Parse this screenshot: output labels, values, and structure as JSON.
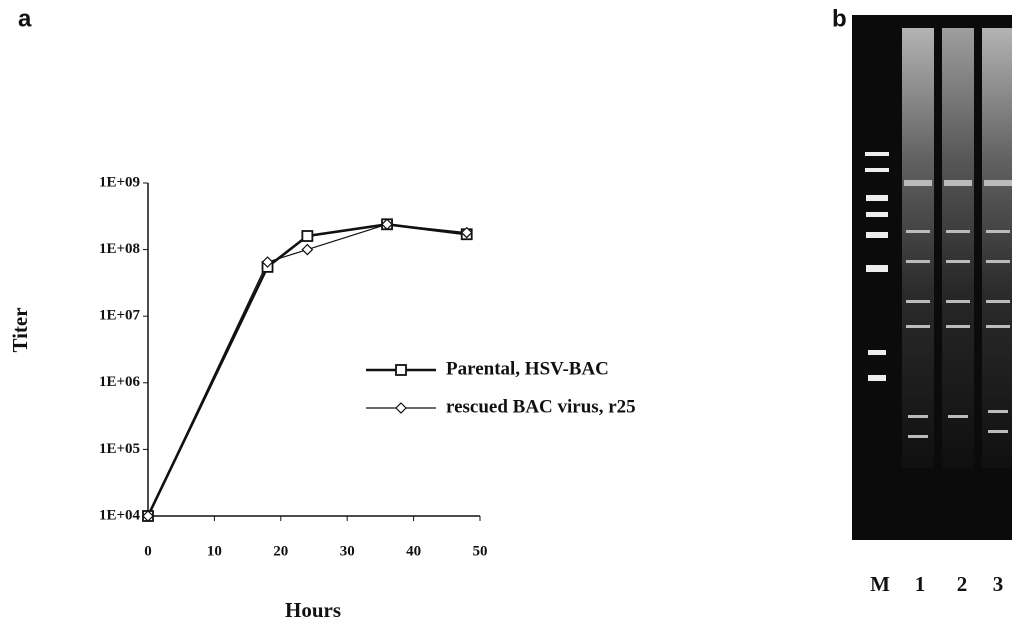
{
  "panel_labels": [
    "a",
    "b"
  ],
  "chart_data": {
    "type": "line",
    "x_label": "Hours",
    "y_label": "Titer",
    "log_scale": true,
    "xlim": [
      0,
      50
    ],
    "xticks": [
      0,
      10,
      20,
      30,
      40,
      50
    ],
    "ylim": [
      10000,
      1000000000
    ],
    "yticks": [
      {
        "value": 10000,
        "label": "1E+04"
      },
      {
        "value": 100000,
        "label": "1E+05"
      },
      {
        "value": 1000000,
        "label": "1E+06"
      },
      {
        "value": 10000000,
        "label": "1E+07"
      },
      {
        "value": 100000000,
        "label": "1E+08"
      },
      {
        "value": 1000000000,
        "label": "1E+09"
      }
    ],
    "series": [
      {
        "name": "Parental, HSV-BAC",
        "color": "#111111",
        "marker": "square",
        "x": [
          0,
          18,
          24,
          36,
          48
        ],
        "values": [
          10000,
          55000000,
          160000000,
          240000000,
          170000000
        ]
      },
      {
        "name": "rescued BAC virus, r25",
        "color": "#111111",
        "marker": "diamond",
        "x": [
          0,
          18,
          24,
          36,
          48
        ],
        "values": [
          10000,
          65000000,
          100000000,
          240000000,
          180000000
        ]
      }
    ]
  },
  "gel": {
    "lane_labels": [
      "M",
      "1",
      "2",
      "3"
    ]
  }
}
